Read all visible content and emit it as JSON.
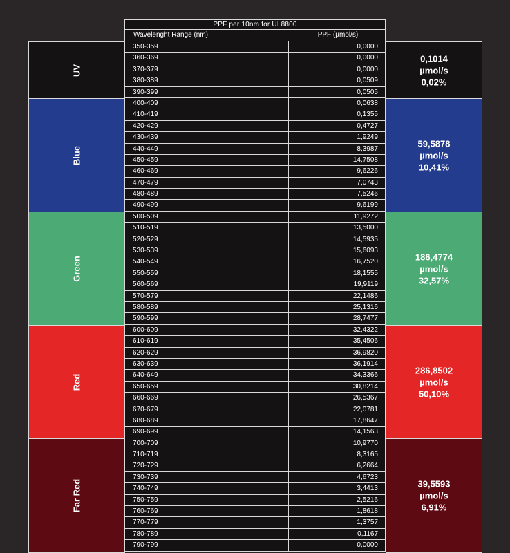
{
  "title": "PPF per 10nm for UL8800",
  "headers": {
    "range": "Wavelenght Range (nm)",
    "ppf": "PPF (µmol/s)"
  },
  "colors": {
    "uv": "#141213",
    "blue": "#243c8e",
    "green": "#4caa74",
    "red": "#e52626",
    "far_red": "#5e0a13"
  },
  "bands": {
    "uv": {
      "label": "UV",
      "value": "0,1014",
      "unit": "µmol/s",
      "percent": "0,02%"
    },
    "blue": {
      "label": "Blue",
      "value": "59,5878",
      "unit": "µmol/s",
      "percent": "10,41%"
    },
    "green": {
      "label": "Green",
      "value": "186,4774",
      "unit": "µmol/s",
      "percent": "32,57%"
    },
    "red": {
      "label": "Red",
      "value": "286,8502",
      "unit": "µmol/s",
      "percent": "50,10%"
    },
    "far_red": {
      "label": "Far Red",
      "value": "39,5593",
      "unit": "µmol/s",
      "percent": "6,91%"
    }
  },
  "rows": [
    {
      "range": "350-359",
      "ppf": "0,0000"
    },
    {
      "range": "360-369",
      "ppf": "0,0000"
    },
    {
      "range": "370-379",
      "ppf": "0,0000"
    },
    {
      "range": "380-389",
      "ppf": "0,0509"
    },
    {
      "range": "390-399",
      "ppf": "0,0505"
    },
    {
      "range": "400-409",
      "ppf": "0,0638"
    },
    {
      "range": "410-419",
      "ppf": "0,1355"
    },
    {
      "range": "420-429",
      "ppf": "0,4727"
    },
    {
      "range": "430-439",
      "ppf": "1,9249"
    },
    {
      "range": "440-449",
      "ppf": "8,3987"
    },
    {
      "range": "450-459",
      "ppf": "14,7508"
    },
    {
      "range": "460-469",
      "ppf": "9,6226"
    },
    {
      "range": "470-479",
      "ppf": "7,0743"
    },
    {
      "range": "480-489",
      "ppf": "7,5246"
    },
    {
      "range": "490-499",
      "ppf": "9,6199"
    },
    {
      "range": "500-509",
      "ppf": "11,9272"
    },
    {
      "range": "510-519",
      "ppf": "13,5000"
    },
    {
      "range": "520-529",
      "ppf": "14,5935"
    },
    {
      "range": "530-539",
      "ppf": "15,6093"
    },
    {
      "range": "540-549",
      "ppf": "16,7520"
    },
    {
      "range": "550-559",
      "ppf": "18,1555"
    },
    {
      "range": "560-569",
      "ppf": "19,9119"
    },
    {
      "range": "570-579",
      "ppf": "22,1486"
    },
    {
      "range": "580-589",
      "ppf": "25,1316"
    },
    {
      "range": "590-599",
      "ppf": "28,7477"
    },
    {
      "range": "600-609",
      "ppf": "32,4322"
    },
    {
      "range": "610-619",
      "ppf": "35,4506"
    },
    {
      "range": "620-629",
      "ppf": "36,9820"
    },
    {
      "range": "630-639",
      "ppf": "36,1914"
    },
    {
      "range": "640-649",
      "ppf": "34,3366"
    },
    {
      "range": "650-659",
      "ppf": "30,8214"
    },
    {
      "range": "660-669",
      "ppf": "26,5367"
    },
    {
      "range": "670-679",
      "ppf": "22,0781"
    },
    {
      "range": "680-689",
      "ppf": "17,8647"
    },
    {
      "range": "690-699",
      "ppf": "14,1563"
    },
    {
      "range": "700-709",
      "ppf": "10,9770"
    },
    {
      "range": "710-719",
      "ppf": "8,3165"
    },
    {
      "range": "720-729",
      "ppf": "6,2664"
    },
    {
      "range": "730-739",
      "ppf": "4,6723"
    },
    {
      "range": "740-749",
      "ppf": "3,4413"
    },
    {
      "range": "750-759",
      "ppf": "2,5216"
    },
    {
      "range": "760-769",
      "ppf": "1,8618"
    },
    {
      "range": "770-779",
      "ppf": "1,3757"
    },
    {
      "range": "780-789",
      "ppf": "0,1167"
    },
    {
      "range": "790-799",
      "ppf": "0,0000"
    }
  ]
}
